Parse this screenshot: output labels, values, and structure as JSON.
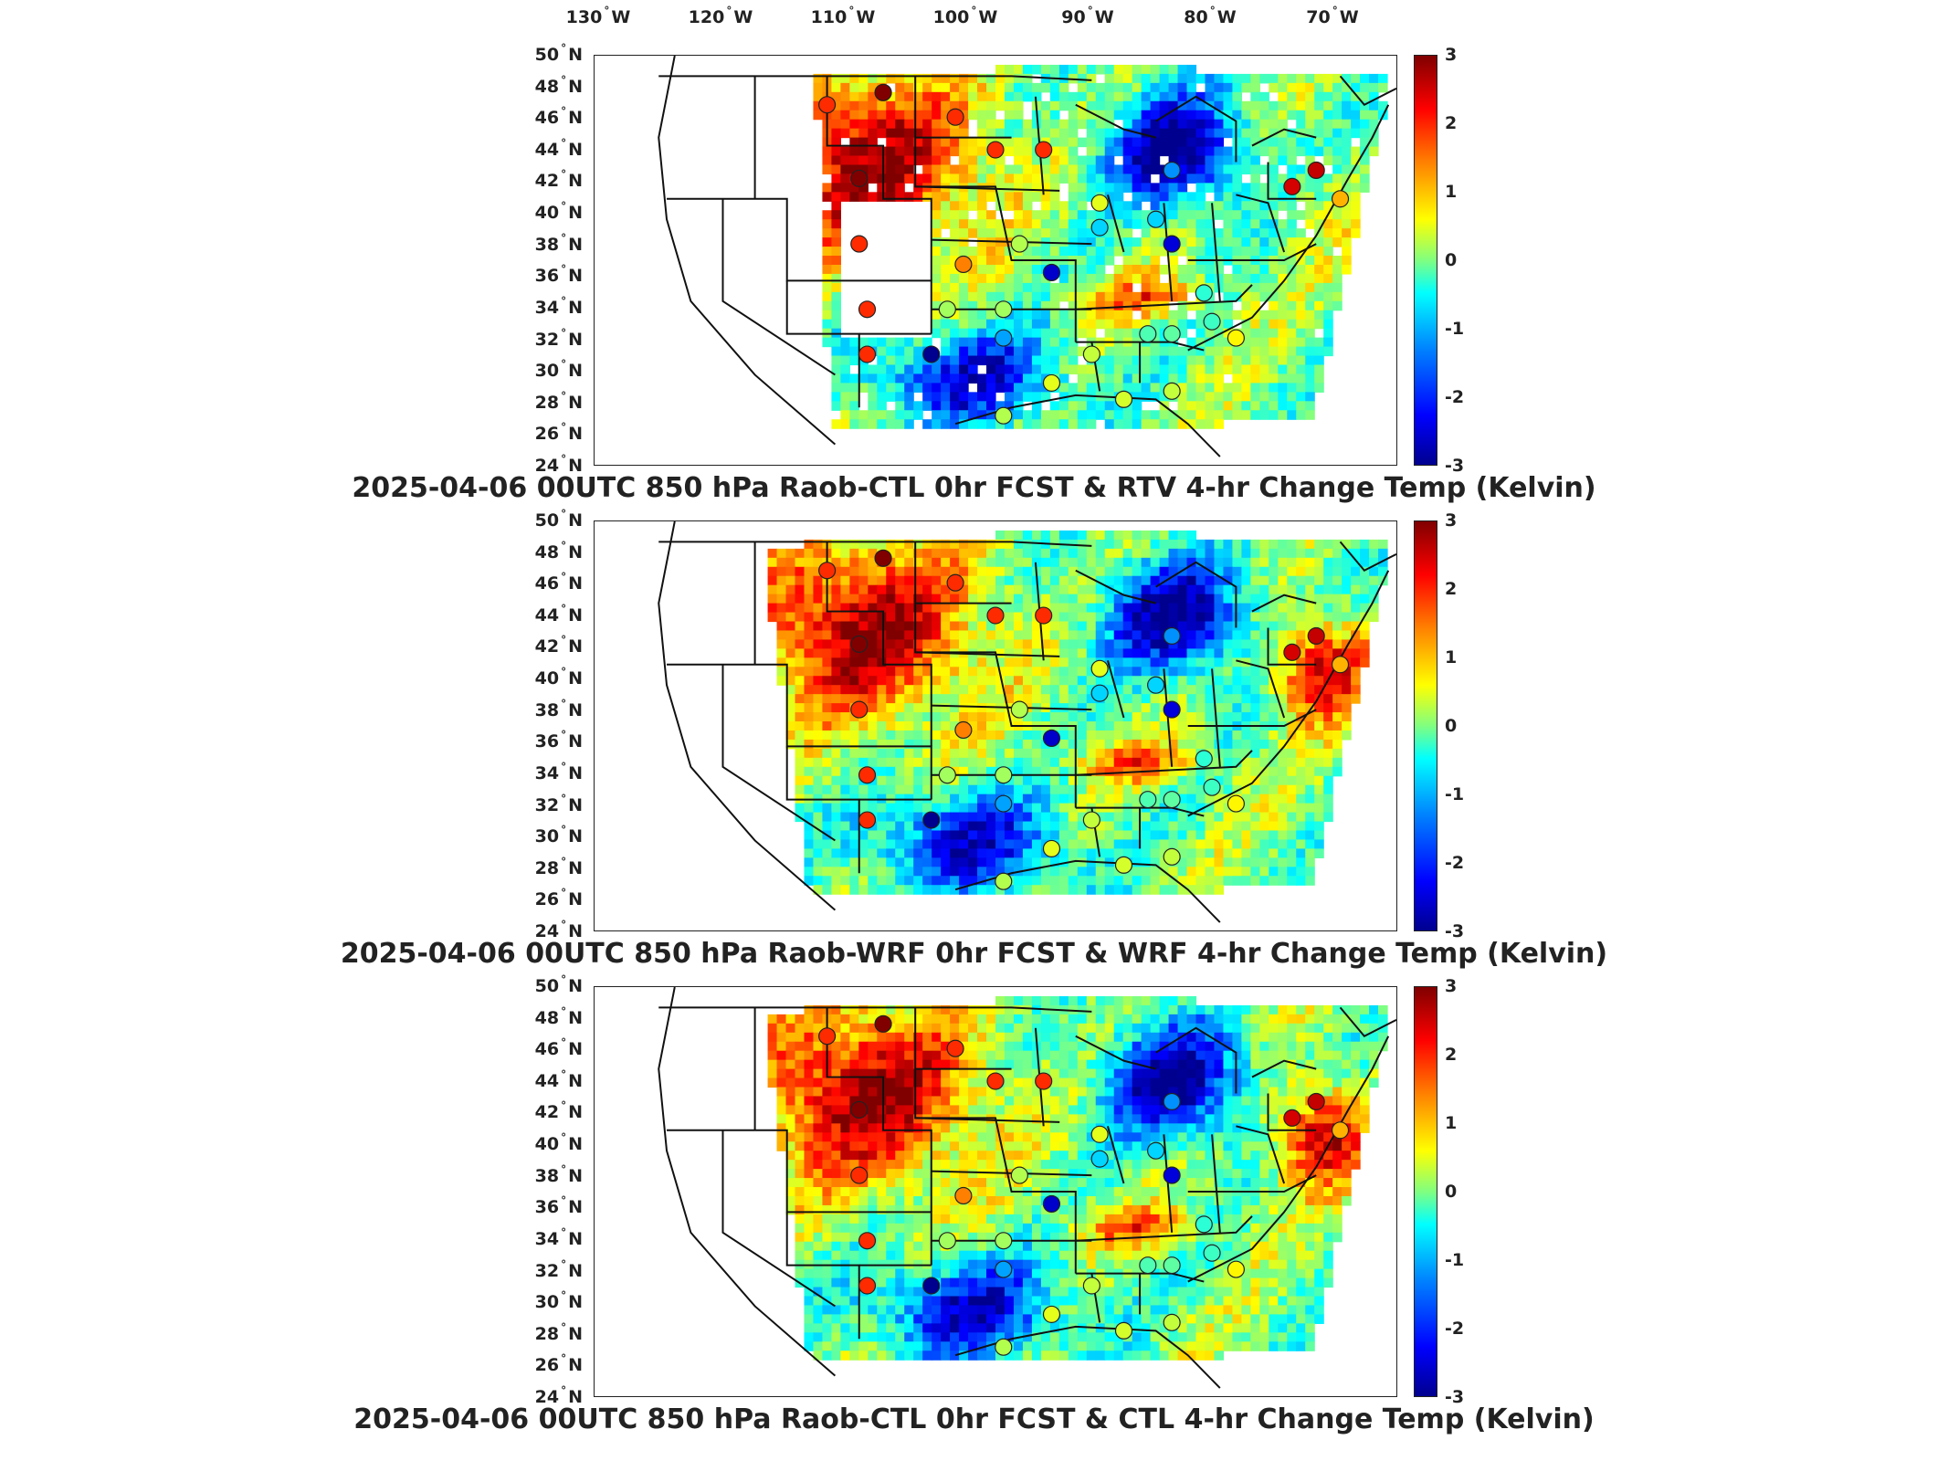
{
  "longitude_labels": [
    {
      "deg": "130",
      "hem": "W"
    },
    {
      "deg": "120",
      "hem": "W"
    },
    {
      "deg": "110",
      "hem": "W"
    },
    {
      "deg": "100",
      "hem": "W"
    },
    {
      "deg": "90",
      "hem": "W"
    },
    {
      "deg": "80",
      "hem": "W"
    },
    {
      "deg": "70",
      "hem": "W"
    }
  ],
  "latitude_labels": [
    "50",
    "48",
    "46",
    "44",
    "42",
    "40",
    "38",
    "36",
    "34",
    "32",
    "30",
    "28",
    "26",
    "24"
  ],
  "latitude_hemisphere": "N",
  "colorbar": {
    "ticks": [
      "3",
      "2",
      "1",
      "0",
      "-1",
      "-2",
      "-3"
    ],
    "min": -3,
    "max": 3,
    "colormap": "jet",
    "colors": [
      "#00008f",
      "#0000ff",
      "#0080ff",
      "#00ffff",
      "#80ff80",
      "#ffff00",
      "#ff8000",
      "#ff0000",
      "#800000"
    ]
  },
  "panels": [
    {
      "title": "2025-04-06 00UTC 850 hPa Raob-CTL 0hr FCST & RTV 4-hr Change Temp (Kelvin)"
    },
    {
      "title": "2025-04-06 00UTC 850 hPa Raob-WRF 0hr FCST & WRF 4-hr Change Temp (Kelvin)"
    },
    {
      "title": "2025-04-06 00UTC 850 hPa Raob-CTL 0hr FCST & CTL 4-hr Change Temp (Kelvin)"
    }
  ]
}
